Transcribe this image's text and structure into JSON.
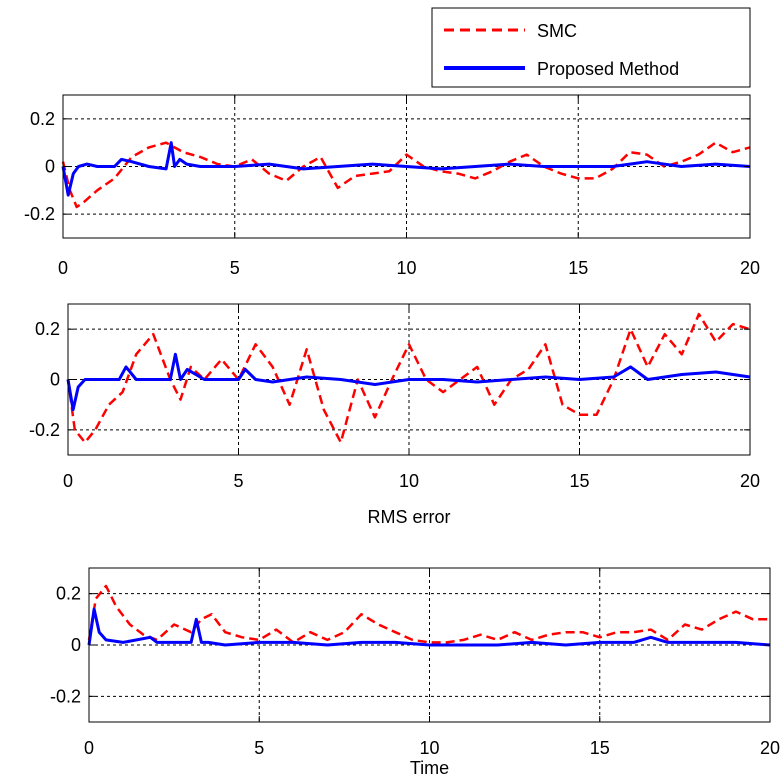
{
  "chart_data": [
    {
      "type": "line",
      "xlabel": "",
      "xlim": [
        0,
        20
      ],
      "ylim": [
        -0.3,
        0.3
      ],
      "xticks": [
        "0",
        "5",
        "10",
        "15",
        "20"
      ],
      "yticks": [
        "0.2",
        "0",
        "-0.2"
      ],
      "grid": true,
      "legend": "above-right",
      "series": [
        {
          "name": "SMC",
          "color": "#ff0000",
          "style": "dashed",
          "x": [
            0,
            0.2,
            0.4,
            0.6,
            1,
            1.5,
            2,
            2.5,
            3,
            3.5,
            4,
            4.5,
            5,
            5.5,
            6,
            6.5,
            7,
            7.5,
            8,
            8.5,
            9,
            9.5,
            10,
            10.5,
            11,
            11.5,
            12,
            12.5,
            13,
            13.5,
            14,
            14.5,
            15,
            15.5,
            16,
            16.5,
            17,
            17.5,
            18,
            18.5,
            19,
            19.5,
            20
          ],
          "y": [
            0.02,
            -0.1,
            -0.17,
            -0.15,
            -0.1,
            -0.05,
            0.04,
            0.08,
            0.1,
            0.06,
            0.04,
            0.01,
            0.0,
            0.03,
            -0.03,
            -0.06,
            0.0,
            0.04,
            -0.09,
            -0.04,
            -0.03,
            -0.02,
            0.05,
            0.0,
            -0.02,
            -0.03,
            -0.05,
            -0.02,
            0.02,
            0.05,
            0.0,
            -0.03,
            -0.05,
            -0.05,
            -0.01,
            0.06,
            0.05,
            0.0,
            0.02,
            0.05,
            0.1,
            0.06,
            0.08
          ]
        },
        {
          "name": "Proposed Method",
          "color": "#0000ff",
          "style": "solid",
          "x": [
            0,
            0.15,
            0.3,
            0.45,
            0.7,
            1,
            1.5,
            1.7,
            2,
            2.5,
            3,
            3.15,
            3.25,
            3.4,
            3.6,
            4,
            5,
            6,
            7,
            8,
            9,
            10,
            11,
            12,
            13,
            14,
            15,
            16,
            16.5,
            17,
            18,
            19,
            20
          ],
          "y": [
            0.0,
            -0.12,
            -0.03,
            0.0,
            0.01,
            0.0,
            0.0,
            0.03,
            0.02,
            0.0,
            -0.01,
            0.1,
            0.0,
            0.03,
            0.01,
            0.0,
            0.0,
            0.01,
            -0.01,
            0.0,
            0.01,
            0.0,
            -0.01,
            0.0,
            0.01,
            0.0,
            0.0,
            0.0,
            0.01,
            0.02,
            0.0,
            0.01,
            0.0
          ]
        }
      ]
    },
    {
      "type": "line",
      "xlabel": "RMS error",
      "xlim": [
        0,
        20
      ],
      "ylim": [
        -0.3,
        0.3
      ],
      "xticks": [
        "0",
        "5",
        "10",
        "15",
        "20"
      ],
      "yticks": [
        "0.2",
        "0",
        "-0.2"
      ],
      "grid": true,
      "series": [
        {
          "name": "SMC",
          "color": "#ff0000",
          "style": "dashed",
          "x": [
            0,
            0.2,
            0.5,
            0.8,
            1.2,
            1.6,
            2,
            2.5,
            3,
            3.3,
            3.6,
            4,
            4.5,
            5,
            5.5,
            6,
            6.5,
            7,
            7.5,
            8,
            8.5,
            9,
            9.5,
            10,
            10.5,
            11,
            11.5,
            12,
            12.5,
            13,
            13.5,
            14,
            14.5,
            15,
            15.5,
            16,
            16.5,
            17,
            17.5,
            18,
            18.5,
            19,
            19.5,
            20
          ],
          "y": [
            0.0,
            -0.2,
            -0.25,
            -0.2,
            -0.1,
            -0.05,
            0.1,
            0.18,
            0.0,
            -0.08,
            0.05,
            0.0,
            0.08,
            0.0,
            0.14,
            0.05,
            -0.1,
            0.12,
            -0.12,
            -0.25,
            0.0,
            -0.15,
            0.0,
            0.14,
            0.0,
            -0.05,
            0.0,
            0.05,
            -0.1,
            0.0,
            0.04,
            0.14,
            -0.1,
            -0.14,
            -0.14,
            0.0,
            0.2,
            0.05,
            0.18,
            0.1,
            0.26,
            0.15,
            0.22,
            0.2
          ]
        },
        {
          "name": "Proposed Method",
          "color": "#0000ff",
          "style": "solid",
          "x": [
            0,
            0.15,
            0.3,
            0.5,
            1,
            1.5,
            1.7,
            2,
            2.5,
            3,
            3.15,
            3.3,
            3.5,
            4,
            5,
            5.2,
            5.5,
            6,
            7,
            8,
            9,
            10,
            11,
            12,
            13,
            14,
            15,
            16,
            16.5,
            17,
            18,
            19,
            20
          ],
          "y": [
            0.0,
            -0.12,
            -0.03,
            0.0,
            0.0,
            0.0,
            0.05,
            0.0,
            0.0,
            0.0,
            0.1,
            0.0,
            0.04,
            0.0,
            0.0,
            0.04,
            0.0,
            -0.01,
            0.01,
            0.0,
            -0.02,
            0.0,
            0.0,
            -0.01,
            0.0,
            0.01,
            0.0,
            0.01,
            0.05,
            0.0,
            0.02,
            0.03,
            0.01
          ]
        }
      ]
    },
    {
      "type": "line",
      "xlabel": "Time",
      "xlim": [
        0,
        20
      ],
      "ylim": [
        -0.3,
        0.3
      ],
      "xticks": [
        "0",
        "5",
        "10",
        "15",
        "20"
      ],
      "yticks": [
        "0.2",
        "0",
        "-0.2"
      ],
      "grid": true,
      "series": [
        {
          "name": "SMC",
          "color": "#ff0000",
          "style": "dashed",
          "x": [
            0,
            0.2,
            0.5,
            0.8,
            1.2,
            1.6,
            2,
            2.5,
            3,
            3.3,
            3.6,
            4,
            4.5,
            5,
            5.5,
            6,
            6.5,
            7,
            7.5,
            8,
            8.5,
            9,
            9.5,
            10,
            10.5,
            11,
            11.5,
            12,
            12.5,
            13,
            13.5,
            14,
            14.5,
            15,
            15.5,
            16,
            16.5,
            17,
            17.5,
            18,
            18.5,
            19,
            19.5,
            20
          ],
          "y": [
            0.02,
            0.18,
            0.23,
            0.15,
            0.08,
            0.04,
            0.02,
            0.08,
            0.05,
            0.1,
            0.12,
            0.05,
            0.03,
            0.02,
            0.06,
            0.01,
            0.05,
            0.02,
            0.05,
            0.12,
            0.08,
            0.05,
            0.02,
            0.01,
            0.01,
            0.02,
            0.04,
            0.02,
            0.05,
            0.02,
            0.04,
            0.05,
            0.05,
            0.03,
            0.05,
            0.05,
            0.06,
            0.02,
            0.08,
            0.06,
            0.1,
            0.13,
            0.1,
            0.1
          ]
        },
        {
          "name": "Proposed Method",
          "color": "#0000ff",
          "style": "solid",
          "x": [
            0,
            0.15,
            0.3,
            0.5,
            1,
            1.8,
            2,
            3,
            3.15,
            3.3,
            3.5,
            4,
            5,
            6,
            7,
            8,
            9,
            10,
            11,
            12,
            13,
            14,
            15,
            16,
            16.5,
            17,
            18,
            19,
            20
          ],
          "y": [
            0.0,
            0.14,
            0.05,
            0.02,
            0.01,
            0.03,
            0.01,
            0.01,
            0.1,
            0.01,
            0.01,
            0.0,
            0.01,
            0.01,
            0.0,
            0.01,
            0.01,
            0.0,
            0.0,
            0.0,
            0.01,
            0.0,
            0.01,
            0.01,
            0.03,
            0.01,
            0.01,
            0.01,
            0.0
          ]
        }
      ]
    }
  ],
  "legend": {
    "items": [
      {
        "label": "SMC",
        "color": "#ff0000",
        "style": "dashed"
      },
      {
        "label": "Proposed Method",
        "color": "#0000ff",
        "style": "solid"
      }
    ]
  }
}
